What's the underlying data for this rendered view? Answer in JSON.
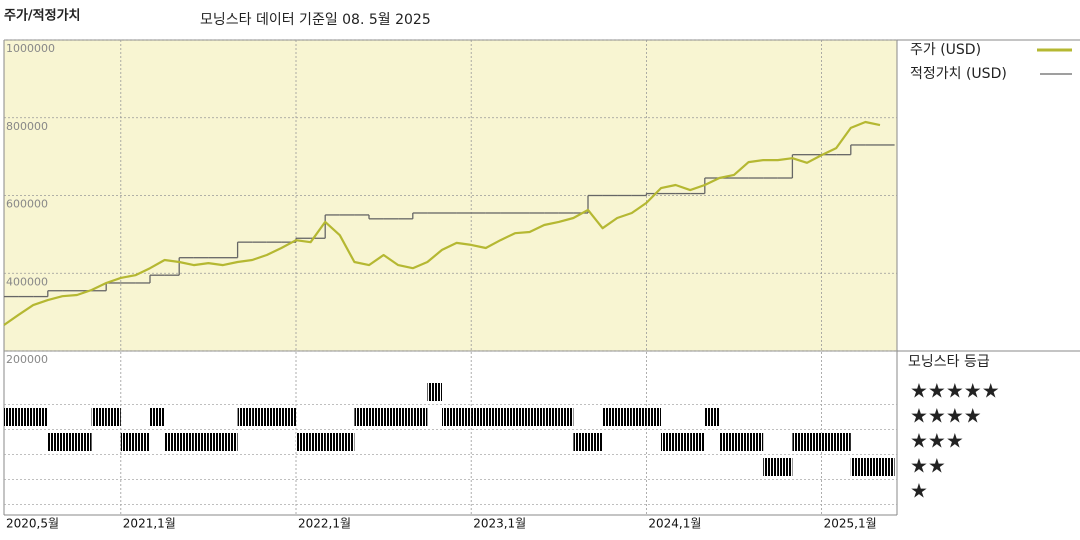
{
  "chart_data": {
    "type": "line",
    "title": "주가/적정가치",
    "subtitle": "모닝스타 데이터 기준일 08. 5월 2025",
    "x": [
      "2020-05",
      "2020-06",
      "2020-07",
      "2020-08",
      "2020-09",
      "2020-10",
      "2020-11",
      "2020-12",
      "2021-01",
      "2021-02",
      "2021-03",
      "2021-04",
      "2021-05",
      "2021-06",
      "2021-07",
      "2021-08",
      "2021-09",
      "2021-10",
      "2021-11",
      "2021-12",
      "2022-01",
      "2022-02",
      "2022-03",
      "2022-04",
      "2022-05",
      "2022-06",
      "2022-07",
      "2022-08",
      "2022-09",
      "2022-10",
      "2022-11",
      "2022-12",
      "2023-01",
      "2023-02",
      "2023-03",
      "2023-04",
      "2023-05",
      "2023-06",
      "2023-07",
      "2023-08",
      "2023-09",
      "2023-10",
      "2023-11",
      "2023-12",
      "2024-01",
      "2024-02",
      "2024-03",
      "2024-04",
      "2024-05",
      "2024-06",
      "2024-07",
      "2024-08",
      "2024-09",
      "2024-10",
      "2024-11",
      "2024-12",
      "2025-01",
      "2025-02",
      "2025-03",
      "2025-04",
      "2025-05"
    ],
    "series": [
      {
        "name": "주가 (USD)",
        "color": "#b5b832",
        "values": [
          267000,
          293000,
          318000,
          331000,
          341000,
          344000,
          357000,
          375000,
          388000,
          395000,
          413000,
          434000,
          429000,
          421000,
          426000,
          421000,
          429000,
          434000,
          447000,
          465000,
          485000,
          480000,
          532000,
          498000,
          429000,
          421000,
          447000,
          421000,
          413000,
          429000,
          460000,
          478000,
          473000,
          465000,
          485000,
          503000,
          506000,
          524000,
          532000,
          542000,
          563000,
          516000,
          542000,
          555000,
          581000,
          619000,
          627000,
          614000,
          627000,
          645000,
          653000,
          686000,
          691000,
          691000,
          696000,
          684000,
          704000,
          722000,
          774000,
          789000,
          781000
        ]
      },
      {
        "name": "적정가치 (USD)",
        "color": "#666666",
        "values": [
          340000,
          340000,
          340000,
          355000,
          355000,
          355000,
          355000,
          375000,
          375000,
          375000,
          395000,
          395000,
          440000,
          440000,
          440000,
          440000,
          480000,
          480000,
          480000,
          480000,
          490000,
          490000,
          550000,
          550000,
          550000,
          540000,
          540000,
          540000,
          555000,
          555000,
          555000,
          555000,
          555000,
          555000,
          555000,
          555000,
          555000,
          555000,
          555000,
          555000,
          600000,
          600000,
          600000,
          600000,
          605000,
          605000,
          605000,
          605000,
          645000,
          645000,
          645000,
          645000,
          645000,
          645000,
          705000,
          705000,
          705000,
          705000,
          730000,
          730000,
          730000
        ]
      }
    ],
    "xticks": [
      {
        "value": "2020-05",
        "label": "2020,5월"
      },
      {
        "value": "2021-01",
        "label": "2021,1월"
      },
      {
        "value": "2022-01",
        "label": "2022,1월"
      },
      {
        "value": "2023-01",
        "label": "2023,1월"
      },
      {
        "value": "2024-01",
        "label": "2024,1월"
      },
      {
        "value": "2025-01",
        "label": "2025,1월"
      }
    ],
    "ylim": [
      200000,
      1000000
    ],
    "yticks": [
      200000,
      400000,
      600000,
      800000,
      1000000
    ],
    "grid": true,
    "rating_title": "모닝스타 등급",
    "rating_labels": [
      "★★★★★",
      "★★★★",
      "★★★",
      "★★",
      "★"
    ],
    "rating_levels": [
      5,
      4,
      3,
      2,
      1
    ],
    "ratings": [
      4,
      4,
      4,
      3,
      3,
      3,
      4,
      4,
      3,
      3,
      4,
      3,
      3,
      3,
      3,
      3,
      4,
      4,
      4,
      4,
      3,
      3,
      3,
      3,
      4,
      4,
      4,
      4,
      4,
      5,
      4,
      4,
      4,
      4,
      4,
      4,
      4,
      4,
      4,
      3,
      3,
      4,
      4,
      4,
      4,
      3,
      3,
      3,
      4,
      3,
      3,
      3,
      2,
      2,
      3,
      3,
      3,
      3,
      2,
      2,
      2
    ],
    "rating_color": "#333333",
    "top_rating_color": "#2e7d52"
  }
}
